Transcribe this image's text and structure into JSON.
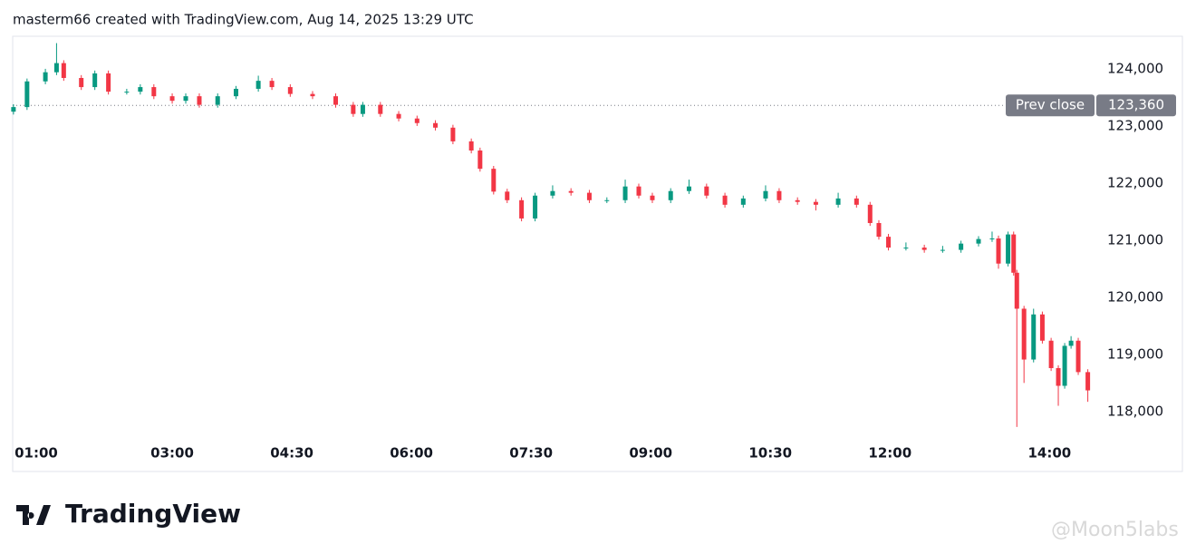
{
  "chart_data": {
    "type": "candlestick",
    "title": "masterm66 created with TradingView.com, Aug 14, 2025 13:29 UTC",
    "x": [
      1.01,
      1.18,
      1.41,
      1.55,
      1.64,
      1.86,
      2.03,
      2.2,
      2.43,
      2.6,
      2.77,
      3.0,
      3.17,
      3.34,
      3.57,
      3.8,
      4.08,
      4.25,
      4.48,
      4.76,
      5.05,
      5.27,
      5.39,
      5.61,
      5.84,
      6.07,
      6.3,
      6.52,
      6.75,
      6.86,
      7.03,
      7.2,
      7.38,
      7.55,
      7.77,
      8.0,
      8.23,
      8.45,
      8.68,
      8.85,
      9.02,
      9.25,
      9.48,
      9.7,
      9.93,
      10.16,
      10.44,
      10.61,
      10.84,
      11.07,
      11.35,
      11.58,
      11.75,
      11.86,
      11.98,
      12.2,
      12.43,
      12.66,
      12.89,
      13.11,
      13.28,
      13.36,
      13.48,
      13.55,
      13.59,
      13.68,
      13.8,
      13.91,
      14.02,
      14.11,
      14.19,
      14.27,
      14.36,
      14.48
    ],
    "open": [
      123250,
      123330,
      123780,
      123940,
      124100,
      123840,
      123680,
      123920,
      123600,
      123600,
      123680,
      123520,
      123440,
      123520,
      123370,
      123520,
      123650,
      123790,
      123680,
      123560,
      123520,
      123370,
      123210,
      123370,
      123210,
      123130,
      123050,
      122970,
      122730,
      122570,
      122250,
      121850,
      121700,
      121380,
      121780,
      121860,
      121830,
      121700,
      121700,
      121940,
      121780,
      121700,
      121860,
      121940,
      121780,
      121620,
      121730,
      121860,
      121700,
      121670,
      121620,
      121730,
      121620,
      121300,
      121060,
      120870,
      120870,
      120830,
      120830,
      120940,
      121020,
      121030,
      120590,
      121100,
      120430,
      119800,
      118910,
      119700,
      119240,
      118760,
      118450,
      119150,
      119240,
      118690
    ],
    "high": [
      123380,
      123830,
      124000,
      124450,
      124150,
      123890,
      123970,
      123970,
      123650,
      123730,
      123730,
      123570,
      123570,
      123570,
      123570,
      123700,
      123880,
      123840,
      123730,
      123610,
      123570,
      123420,
      123420,
      123420,
      123260,
      123180,
      123100,
      123020,
      122780,
      122620,
      122300,
      121900,
      121750,
      121830,
      121960,
      121910,
      121880,
      121750,
      122060,
      121990,
      121830,
      121910,
      122060,
      121990,
      121830,
      121780,
      121960,
      121910,
      121750,
      121720,
      121830,
      121780,
      121670,
      121350,
      121110,
      120960,
      120920,
      120900,
      120990,
      121070,
      121150,
      121080,
      121150,
      121150,
      120480,
      119850,
      119800,
      119750,
      119290,
      118810,
      119200,
      119320,
      119290,
      118740
    ],
    "low": [
      123200,
      123280,
      123730,
      123890,
      123790,
      123630,
      123630,
      123550,
      123550,
      123550,
      123470,
      123390,
      123390,
      123320,
      123320,
      123470,
      123600,
      123630,
      123510,
      123470,
      123320,
      123160,
      123160,
      123160,
      123080,
      123000,
      122920,
      122680,
      122520,
      122200,
      121800,
      121650,
      121330,
      121330,
      121730,
      121780,
      121650,
      121650,
      121650,
      121730,
      121650,
      121650,
      121810,
      121730,
      121570,
      121570,
      121680,
      121650,
      121620,
      121520,
      121570,
      121570,
      121250,
      121010,
      120820,
      120820,
      120780,
      120780,
      120780,
      120890,
      120970,
      120500,
      120540,
      120380,
      117730,
      118500,
      118860,
      119190,
      118710,
      118100,
      118400,
      119100,
      118640,
      118170
    ],
    "close": [
      123330,
      123780,
      123940,
      124100,
      123840,
      123680,
      123920,
      123600,
      123600,
      123680,
      123520,
      123440,
      123520,
      123370,
      123520,
      123650,
      123790,
      123680,
      123560,
      123520,
      123370,
      123210,
      123370,
      123210,
      123130,
      123050,
      122970,
      122730,
      122570,
      122250,
      121850,
      121700,
      121380,
      121780,
      121860,
      121830,
      121700,
      121700,
      121940,
      121780,
      121700,
      121860,
      121940,
      121780,
      121620,
      121730,
      121860,
      121700,
      121670,
      121620,
      121730,
      121620,
      121300,
      121060,
      120870,
      120870,
      120830,
      120830,
      120940,
      121020,
      121030,
      120590,
      121100,
      120430,
      119800,
      118910,
      119700,
      119240,
      118760,
      118450,
      119150,
      119240,
      118690,
      118370
    ],
    "up_color": "#089981",
    "down_color": "#f23645",
    "xlim": [
      1,
      14.53
    ],
    "ylim": [
      116950,
      124570
    ],
    "xticks": [
      {
        "value": 1,
        "label": "01:00"
      },
      {
        "value": 3,
        "label": "03:00"
      },
      {
        "value": 4.5,
        "label": "04:30"
      },
      {
        "value": 6,
        "label": "06:00"
      },
      {
        "value": 7.5,
        "label": "07:30"
      },
      {
        "value": 9,
        "label": "09:00"
      },
      {
        "value": 10.5,
        "label": "10:30"
      },
      {
        "value": 12,
        "label": "12:00"
      },
      {
        "value": 14,
        "label": "14:00"
      }
    ],
    "yticks": [
      {
        "value": 118000,
        "label": "118,000"
      },
      {
        "value": 119000,
        "label": "119,000"
      },
      {
        "value": 120000,
        "label": "120,000"
      },
      {
        "value": 121000,
        "label": "121,000"
      },
      {
        "value": 122000,
        "label": "122,000"
      },
      {
        "value": 123000,
        "label": "123,000"
      },
      {
        "value": 124000,
        "label": "124,000"
      }
    ],
    "prev_close": {
      "name": "Prev close",
      "value": 123360,
      "value_label": "123,360",
      "color": "#787b86"
    },
    "grid": false
  },
  "branding": {
    "logo": "TradingView",
    "watermark": "@Moon5labs"
  }
}
